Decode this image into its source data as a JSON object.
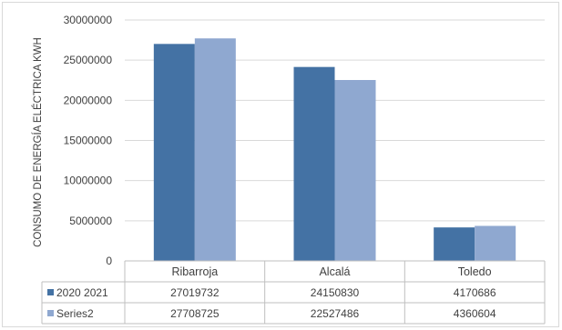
{
  "chart_data": {
    "type": "bar",
    "ylabel": "CONSUMO DE ENERGÍA ELÉCTRICA KWH",
    "xlabel": "",
    "categories": [
      "Ribarroja",
      "Alcalá",
      "Toledo"
    ],
    "ylim": [
      0,
      30000000
    ],
    "yticks": [
      0,
      5000000,
      10000000,
      15000000,
      20000000,
      25000000,
      30000000
    ],
    "ytick_labels": [
      "0",
      "5000000",
      "10000000",
      "15000000",
      "20000000",
      "25000000",
      "30000000"
    ],
    "grid": true,
    "legend": "data-table",
    "series": [
      {
        "name": "2020 2021",
        "values": [
          27019732,
          24150830,
          4170686
        ],
        "value_labels": [
          "27019732",
          "24150830",
          "4170686"
        ],
        "color": "#4472a4"
      },
      {
        "name": "Series2",
        "values": [
          27708725,
          22527486,
          4360604
        ],
        "value_labels": [
          "27708725",
          "22527486",
          "4360604"
        ],
        "color": "#8fa8d0"
      }
    ]
  }
}
